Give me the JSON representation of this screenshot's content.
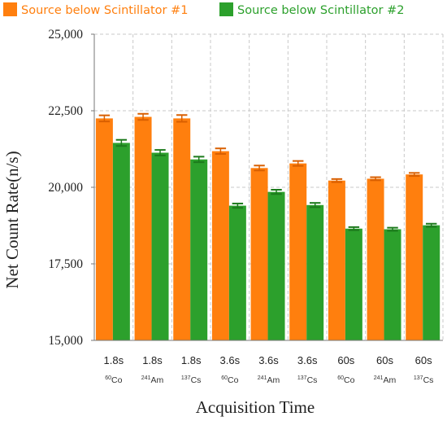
{
  "chart_data": {
    "type": "bar",
    "xlabel": "Acquisition Time",
    "ylabel": "Net Count Rate(n/s)",
    "ylim": [
      15000,
      25000
    ],
    "yticks": [
      "15,000",
      "17,500",
      "20,000",
      "22,500",
      "25,000"
    ],
    "ytick_values": [
      15000,
      17500,
      20000,
      22500,
      25000
    ],
    "grid": true,
    "legend_position": "top",
    "categories": [
      {
        "time": "1.8s",
        "mass": "60",
        "element": "Co"
      },
      {
        "time": "1.8s",
        "mass": "241",
        "element": "Am"
      },
      {
        "time": "1.8s",
        "mass": "137",
        "element": "Cs"
      },
      {
        "time": "3.6s",
        "mass": "60",
        "element": "Co"
      },
      {
        "time": "3.6s",
        "mass": "241",
        "element": "Am"
      },
      {
        "time": "3.6s",
        "mass": "137",
        "element": "Cs"
      },
      {
        "time": "60s",
        "mass": "60",
        "element": "Co"
      },
      {
        "time": "60s",
        "mass": "241",
        "element": "Am"
      },
      {
        "time": "60s",
        "mass": "137",
        "element": "Cs"
      }
    ],
    "series": [
      {
        "name": "Source below Scintillator #1",
        "color": "#FF7F0E",
        "values": [
          22250,
          22300,
          22250,
          21180,
          20630,
          20780,
          20220,
          20280,
          20420
        ],
        "errors": [
          100,
          100,
          110,
          90,
          80,
          80,
          50,
          50,
          50
        ]
      },
      {
        "name": "Source below Scintillator #2",
        "color": "#2CA02C",
        "values": [
          21450,
          21130,
          20910,
          19400,
          19850,
          19420,
          18650,
          18630,
          18760
        ],
        "errors": [
          100,
          90,
          90,
          70,
          70,
          70,
          50,
          50,
          50
        ]
      }
    ]
  }
}
